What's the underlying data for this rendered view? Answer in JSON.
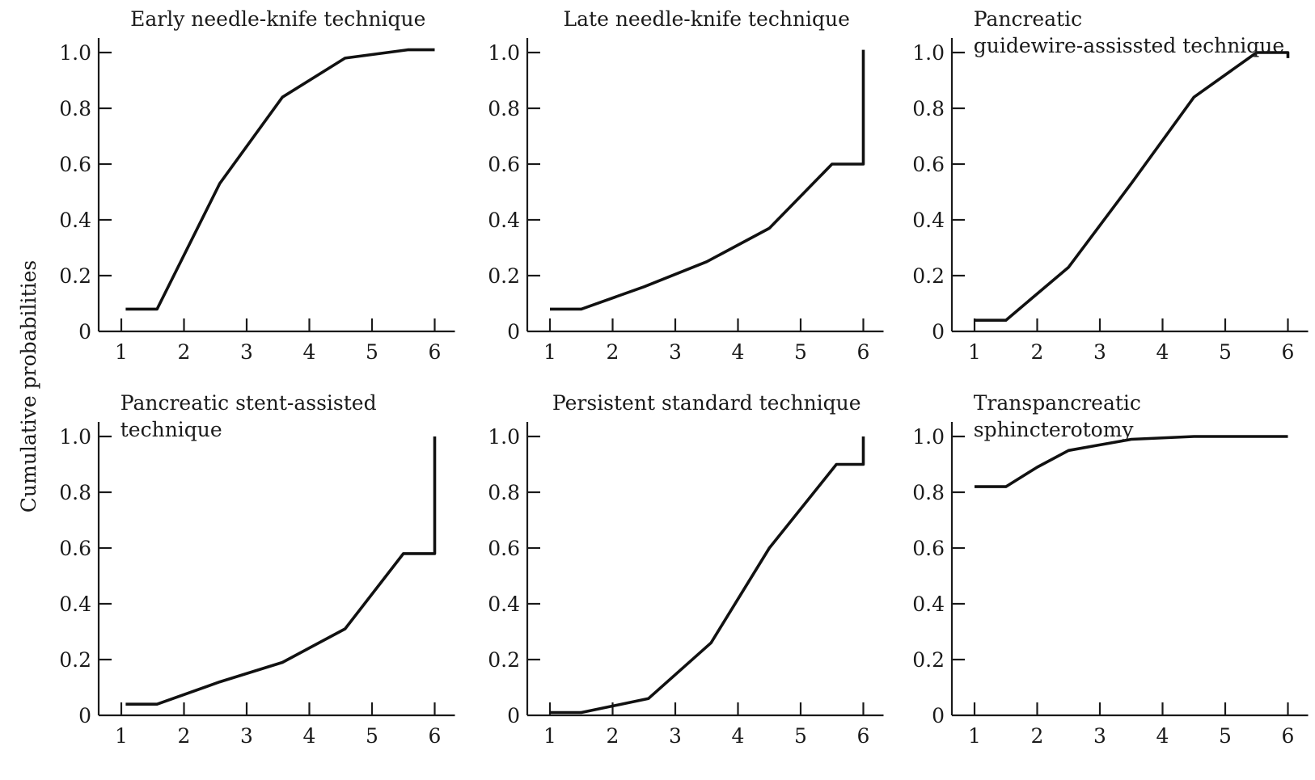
{
  "figure": {
    "ylabel": "Cumulative probabilities"
  },
  "chart_data": [
    {
      "type": "line",
      "title": "Early needle-knife technique",
      "xlabel": "",
      "ylabel": "Cumulative probabilities",
      "xlim": [
        1,
        6
      ],
      "ylim": [
        0,
        1.0
      ],
      "x_ticks": [
        "1",
        "2",
        "3",
        "4",
        "5",
        "6"
      ],
      "y_ticks": [
        "0",
        "0.2",
        "0.4",
        "0.6",
        "0.8",
        "1.0"
      ],
      "series": [
        {
          "x": [
            1.07,
            1.57,
            2.57,
            3.57,
            4.57,
            5.57,
            6.0
          ],
          "y": [
            0.08,
            0.08,
            0.53,
            0.84,
            0.98,
            1.01,
            1.01
          ]
        }
      ]
    },
    {
      "type": "line",
      "title": "Late needle-knife technique",
      "xlabel": "",
      "ylabel": "",
      "xlim": [
        1,
        6
      ],
      "ylim": [
        0,
        1.0
      ],
      "x_ticks": [
        "1",
        "2",
        "3",
        "4",
        "5",
        "6"
      ],
      "y_ticks": [
        "0",
        "0.2",
        "0.4",
        "0.6",
        "0.8",
        "1.0"
      ],
      "series": [
        {
          "x": [
            1.0,
            1.5,
            2.5,
            3.5,
            4.5,
            5.5,
            6.0,
            6.0
          ],
          "y": [
            0.08,
            0.08,
            0.16,
            0.25,
            0.37,
            0.6,
            0.6,
            1.01
          ]
        }
      ]
    },
    {
      "type": "line",
      "title": "Pancreatic guidewire-assissted technique",
      "xlabel": "",
      "ylabel": "",
      "xlim": [
        1,
        6
      ],
      "ylim": [
        0,
        1.0
      ],
      "x_ticks": [
        "1",
        "2",
        "3",
        "4",
        "5",
        "6"
      ],
      "y_ticks": [
        "0",
        "0.2",
        "0.4",
        "0.6",
        "0.8",
        "1.0"
      ],
      "series": [
        {
          "x": [
            1.0,
            1.5,
            2.5,
            3.5,
            4.5,
            5.5,
            6.0,
            6.0
          ],
          "y": [
            0.04,
            0.04,
            0.23,
            0.53,
            0.84,
            1.0,
            1.0,
            0.98
          ]
        }
      ]
    },
    {
      "type": "line",
      "title": "Pancreatic stent-assisted technique",
      "xlabel": "",
      "ylabel": "Cumulative probabilities",
      "xlim": [
        1,
        6
      ],
      "ylim": [
        0,
        1.0
      ],
      "x_ticks": [
        "1",
        "2",
        "3",
        "4",
        "5",
        "6"
      ],
      "y_ticks": [
        "0",
        "0.2",
        "0.4",
        "0.6",
        "0.8",
        "1.0"
      ],
      "series": [
        {
          "x": [
            1.07,
            1.57,
            2.57,
            3.57,
            4.57,
            5.5,
            6.0,
            6.0
          ],
          "y": [
            0.04,
            0.04,
            0.12,
            0.19,
            0.31,
            0.58,
            0.58,
            1.0
          ]
        }
      ]
    },
    {
      "type": "line",
      "title": "Persistent standard technique",
      "xlabel": "",
      "ylabel": "",
      "xlim": [
        1,
        6
      ],
      "ylim": [
        0,
        1.0
      ],
      "x_ticks": [
        "1",
        "2",
        "3",
        "4",
        "5",
        "6"
      ],
      "y_ticks": [
        "0",
        "0.2",
        "0.4",
        "0.6",
        "0.8",
        "1.0"
      ],
      "series": [
        {
          "x": [
            1.0,
            1.5,
            2.57,
            3.57,
            4.5,
            5.57,
            6.0,
            6.0
          ],
          "y": [
            0.01,
            0.01,
            0.06,
            0.26,
            0.6,
            0.9,
            0.9,
            1.0
          ]
        }
      ]
    },
    {
      "type": "line",
      "title": "Transpancreatic sphincterotomy",
      "xlabel": "",
      "ylabel": "",
      "xlim": [
        1,
        6
      ],
      "ylim": [
        0,
        1.0
      ],
      "x_ticks": [
        "1",
        "2",
        "3",
        "4",
        "5",
        "6"
      ],
      "y_ticks": [
        "0",
        "0.2",
        "0.4",
        "0.6",
        "0.8",
        "1.0"
      ],
      "series": [
        {
          "x": [
            1.0,
            1.5,
            2.0,
            2.5,
            3.0,
            3.5,
            4.5,
            5.5,
            6.0
          ],
          "y": [
            0.82,
            0.82,
            0.89,
            0.95,
            0.97,
            0.99,
            1.0,
            1.0,
            1.0
          ]
        }
      ]
    }
  ]
}
